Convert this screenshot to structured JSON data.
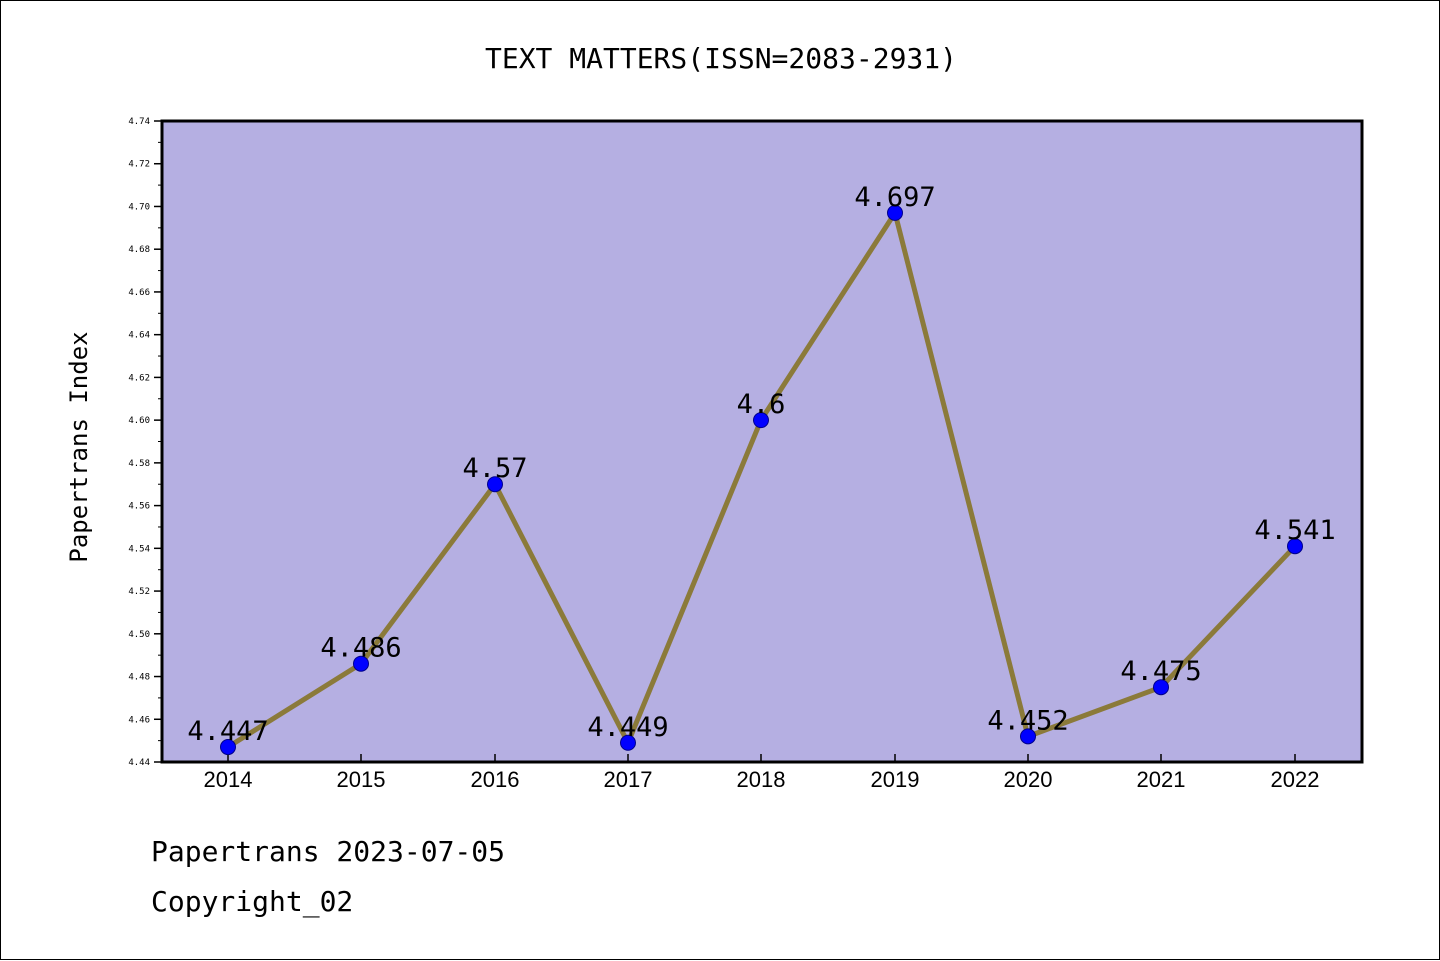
{
  "chart_data": {
    "type": "line",
    "title": "TEXT MATTERS(ISSN=2083-2931)",
    "xlabel": "",
    "ylabel": "Papertrans Index",
    "categories": [
      "2014",
      "2015",
      "2016",
      "2017",
      "2018",
      "2019",
      "2020",
      "2021",
      "2022"
    ],
    "series": [
      {
        "values": [
          4.447,
          4.486,
          4.57,
          4.449,
          4.6,
          4.697,
          4.452,
          4.475,
          4.541
        ],
        "data_labels": [
          "4.447",
          "4.486",
          "4.57",
          "4.449",
          "4.6",
          "4.697",
          "4.452",
          "4.475",
          "4.541"
        ]
      }
    ],
    "ylim": [
      4.44,
      4.74
    ],
    "yticks": [
      "4.44",
      "4.46",
      "4.48",
      "4.50",
      "4.52",
      "4.54",
      "4.56",
      "4.58",
      "4.60",
      "4.62",
      "4.64",
      "4.66",
      "4.68",
      "4.70",
      "4.72",
      "4.74"
    ],
    "grid": false,
    "legend": "none",
    "colors": {
      "plot_background": "#b5afe2",
      "line": "#8b7a3a",
      "marker": "#0000ff",
      "marker_edge": "#00008b"
    }
  },
  "footer": {
    "line1": "Papertrans 2023-07-05",
    "line2": "Copyright_02"
  }
}
